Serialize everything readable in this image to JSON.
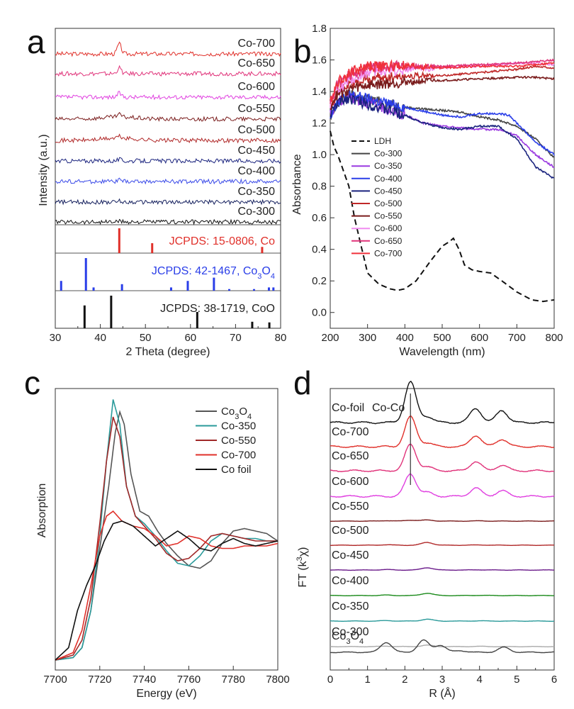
{
  "chart_data": [
    {
      "panel": "a",
      "type": "line",
      "xlabel": "2 Theta (degree)",
      "ylabel": "Intensity (a.u.)",
      "xlim": [
        30,
        80
      ],
      "xticks": [
        "30",
        "40",
        "50",
        "60",
        "70",
        "80"
      ],
      "series": [
        {
          "name": "Co-700",
          "color": "#e0302a",
          "peak": 44.2,
          "peak_height": 1.0
        },
        {
          "name": "Co-650",
          "color": "#e0337a",
          "peak": 44.2,
          "peak_height": 0.6
        },
        {
          "name": "Co-600",
          "color": "#e040e0",
          "peak": 44.2,
          "peak_height": 0.4
        },
        {
          "name": "Co-550",
          "color": "#7a1c1c",
          "peak": 44.2,
          "peak_height": 0.25
        },
        {
          "name": "Co-500",
          "color": "#b02828",
          "peak": 44.2,
          "peak_height": 0.2
        },
        {
          "name": "Co-450",
          "color": "#1a237e",
          "peak": 44.2,
          "peak_height": 0.15
        },
        {
          "name": "Co-400",
          "color": "#3a4ae8",
          "peak": 44.2,
          "peak_height": 0.15
        },
        {
          "name": "Co-350",
          "color": "#15205e",
          "peak": 44.2,
          "peak_height": 0.1
        },
        {
          "name": "Co-300",
          "color": "#111111",
          "peak": 44.2,
          "peak_height": 0.05
        }
      ],
      "references": [
        {
          "label": "JCPDS: 15-0806, Co",
          "color": "#e0302a",
          "peaks": [
            44.2,
            51.5,
            75.9
          ],
          "heights": [
            1.0,
            0.4,
            0.25
          ]
        },
        {
          "label": "JCPDS: 42-1467, Co",
          "label_sub": "3",
          "label_mid": "O",
          "label_sub2": "4",
          "color": "#2a3ee8",
          "peaks": [
            31.3,
            36.8,
            38.5,
            44.8,
            55.7,
            59.4,
            65.2,
            68.6,
            74.1,
            77.4,
            78.4
          ],
          "heights": [
            0.3,
            1.0,
            0.1,
            0.2,
            0.1,
            0.3,
            0.4,
            0.05,
            0.05,
            0.1,
            0.1
          ]
        },
        {
          "label": "JCPDS: 38-1719, CoO",
          "color": "#111111",
          "peaks": [
            36.5,
            42.4,
            61.5,
            73.7,
            77.5
          ],
          "heights": [
            0.7,
            1.0,
            0.5,
            0.2,
            0.18
          ]
        }
      ]
    },
    {
      "panel": "b",
      "type": "line",
      "xlabel": "Wavelength (nm)",
      "ylabel": "Absorbance",
      "xlim": [
        200,
        800
      ],
      "ylim": [
        -0.1,
        1.8
      ],
      "xticks": [
        "200",
        "300",
        "400",
        "500",
        "600",
        "700",
        "800"
      ],
      "yticks": [
        "0.0",
        "0.2",
        "0.4",
        "0.6",
        "0.8",
        "1.0",
        "1.2",
        "1.4",
        "1.6",
        "1.8"
      ],
      "series": [
        {
          "name": "LDH",
          "color": "#111111",
          "dash": true,
          "x": [
            200,
            210,
            220,
            235,
            250,
            265,
            280,
            300,
            330,
            360,
            380,
            400,
            430,
            470,
            500,
            520,
            530,
            545,
            560,
            580,
            600,
            630,
            660,
            700,
            740,
            770,
            800
          ],
          "y": [
            1.15,
            1.05,
            1.0,
            0.9,
            0.8,
            0.6,
            0.45,
            0.25,
            0.18,
            0.15,
            0.14,
            0.15,
            0.2,
            0.33,
            0.42,
            0.45,
            0.47,
            0.4,
            0.3,
            0.27,
            0.26,
            0.25,
            0.2,
            0.13,
            0.08,
            0.07,
            0.08
          ]
        },
        {
          "name": "Co-300",
          "color": "#444444",
          "x": [
            200,
            220,
            250,
            300,
            400,
            500,
            550,
            600,
            650,
            700,
            750,
            800
          ],
          "y": [
            1.22,
            1.32,
            1.38,
            1.35,
            1.3,
            1.28,
            1.27,
            1.24,
            1.22,
            1.18,
            1.1,
            0.98
          ]
        },
        {
          "name": "Co-350",
          "color": "#9a3ae0",
          "x": [
            200,
            220,
            250,
            300,
            400,
            450,
            500,
            550,
            600,
            650,
            700,
            750,
            800
          ],
          "y": [
            1.25,
            1.33,
            1.37,
            1.33,
            1.25,
            1.2,
            1.18,
            1.17,
            1.16,
            1.16,
            1.12,
            1.0,
            0.92
          ]
        },
        {
          "name": "Co-400",
          "color": "#2a3ee8",
          "x": [
            200,
            220,
            250,
            300,
            400,
            500,
            550,
            600,
            650,
            680,
            700,
            750,
            800
          ],
          "y": [
            1.25,
            1.34,
            1.38,
            1.35,
            1.3,
            1.25,
            1.24,
            1.26,
            1.26,
            1.25,
            1.2,
            1.08,
            1.0
          ]
        },
        {
          "name": "Co-450",
          "color": "#1a237e",
          "x": [
            200,
            220,
            250,
            300,
            400,
            450,
            500,
            550,
            600,
            650,
            700,
            720,
            750,
            800
          ],
          "y": [
            1.25,
            1.33,
            1.36,
            1.32,
            1.25,
            1.2,
            1.17,
            1.16,
            1.18,
            1.18,
            1.1,
            1.03,
            0.92,
            0.85
          ]
        },
        {
          "name": "Co-500",
          "color": "#c02828",
          "x": [
            200,
            220,
            260,
            300,
            400,
            500,
            600,
            700,
            750,
            800
          ],
          "y": [
            1.3,
            1.4,
            1.45,
            1.48,
            1.5,
            1.5,
            1.52,
            1.54,
            1.56,
            1.55
          ]
        },
        {
          "name": "Co-550",
          "color": "#7a1c1c",
          "x": [
            200,
            220,
            260,
            300,
            400,
            500,
            600,
            700,
            750,
            800
          ],
          "y": [
            1.32,
            1.38,
            1.42,
            1.44,
            1.46,
            1.47,
            1.48,
            1.49,
            1.49,
            1.48
          ]
        },
        {
          "name": "Co-600",
          "color": "#f08cf0",
          "x": [
            200,
            220,
            260,
            300,
            400,
            500,
            600,
            700,
            750,
            800
          ],
          "y": [
            1.32,
            1.42,
            1.48,
            1.52,
            1.54,
            1.55,
            1.56,
            1.58,
            1.58,
            1.57
          ]
        },
        {
          "name": "Co-650",
          "color": "#e0337a",
          "x": [
            200,
            220,
            260,
            300,
            400,
            500,
            600,
            700,
            750,
            800
          ],
          "y": [
            1.33,
            1.45,
            1.52,
            1.55,
            1.56,
            1.56,
            1.57,
            1.58,
            1.59,
            1.6
          ]
        },
        {
          "name": "Co-700",
          "color": "#f0303a",
          "x": [
            200,
            220,
            260,
            300,
            400,
            500,
            600,
            700,
            750,
            800
          ],
          "y": [
            1.34,
            1.46,
            1.53,
            1.56,
            1.56,
            1.55,
            1.56,
            1.56,
            1.57,
            1.58
          ]
        }
      ]
    },
    {
      "panel": "c",
      "type": "line",
      "xlabel": "Energy (eV)",
      "ylabel": "Absorption",
      "xlim": [
        7700,
        7800
      ],
      "xticks": [
        "7700",
        "7720",
        "7740",
        "7760",
        "7780",
        "7800"
      ],
      "series": [
        {
          "name": "Co",
          "name_sub": "3",
          "name_mid": "O",
          "name_sub2": "4",
          "color": "#555555",
          "x": [
            7700,
            7708,
            7712,
            7716,
            7720,
            7724,
            7727,
            7729,
            7731,
            7734,
            7738,
            7742,
            7746,
            7750,
            7755,
            7760,
            7765,
            7770,
            7775,
            7780,
            7785,
            7790,
            7795,
            7800
          ],
          "y": [
            0.0,
            0.01,
            0.05,
            0.2,
            0.45,
            0.7,
            0.92,
            1.0,
            0.95,
            0.75,
            0.6,
            0.58,
            0.52,
            0.47,
            0.42,
            0.38,
            0.37,
            0.4,
            0.47,
            0.52,
            0.53,
            0.52,
            0.51,
            0.48
          ]
        },
        {
          "name": "Co-350",
          "color": "#2a9a9a",
          "x": [
            7700,
            7708,
            7712,
            7716,
            7720,
            7723,
            7726,
            7729,
            7732,
            7736,
            7740,
            7745,
            7750,
            7755,
            7760,
            7765,
            7770,
            7775,
            7780,
            7785,
            7790,
            7795,
            7800
          ],
          "y": [
            0.0,
            0.01,
            0.05,
            0.2,
            0.5,
            0.8,
            1.05,
            0.95,
            0.7,
            0.58,
            0.55,
            0.5,
            0.44,
            0.39,
            0.38,
            0.42,
            0.48,
            0.51,
            0.5,
            0.49,
            0.49,
            0.48,
            0.48
          ]
        },
        {
          "name": "Co-550",
          "color": "#a02828",
          "x": [
            7700,
            7708,
            7712,
            7716,
            7720,
            7723,
            7726,
            7729,
            7732,
            7736,
            7740,
            7745,
            7750,
            7755,
            7760,
            7765,
            7770,
            7775,
            7780,
            7785,
            7790,
            7795,
            7800
          ],
          "y": [
            0.0,
            0.02,
            0.08,
            0.25,
            0.55,
            0.8,
            0.98,
            0.9,
            0.7,
            0.58,
            0.54,
            0.49,
            0.43,
            0.4,
            0.41,
            0.45,
            0.5,
            0.51,
            0.5,
            0.49,
            0.48,
            0.48,
            0.48
          ]
        },
        {
          "name": "Co-700",
          "color": "#e0302a",
          "x": [
            7700,
            7708,
            7712,
            7716,
            7720,
            7723,
            7726,
            7730,
            7735,
            7740,
            7745,
            7750,
            7755,
            7760,
            7765,
            7770,
            7775,
            7780,
            7785,
            7790,
            7795,
            7800
          ],
          "y": [
            0.0,
            0.03,
            0.12,
            0.3,
            0.5,
            0.58,
            0.6,
            0.56,
            0.54,
            0.53,
            0.5,
            0.46,
            0.47,
            0.5,
            0.49,
            0.46,
            0.45,
            0.45,
            0.46,
            0.46,
            0.46,
            0.47
          ]
        },
        {
          "name": "Co foil",
          "color": "#111111",
          "x": [
            7700,
            7706,
            7710,
            7714,
            7718,
            7722,
            7726,
            7730,
            7735,
            7740,
            7745,
            7750,
            7755,
            7760,
            7765,
            7770,
            7775,
            7780,
            7785,
            7790,
            7795,
            7800
          ],
          "y": [
            0.0,
            0.05,
            0.2,
            0.3,
            0.38,
            0.48,
            0.55,
            0.56,
            0.54,
            0.5,
            0.46,
            0.49,
            0.52,
            0.49,
            0.45,
            0.44,
            0.47,
            0.49,
            0.47,
            0.46,
            0.47,
            0.48
          ]
        }
      ]
    },
    {
      "panel": "d",
      "type": "line",
      "xlabel": "R (Å)",
      "ylabel": "FT (k",
      "ylabel_sup": "3",
      "ylabel_end": "χ)",
      "xlim": [
        0,
        6
      ],
      "xticks": [
        "0",
        "1",
        "2",
        "3",
        "4",
        "5",
        "6"
      ],
      "annotation": "Co-Co",
      "annotation_x": 2.15,
      "series": [
        {
          "name": "Co-foil",
          "color": "#111111",
          "peaks": [
            [
              2.15,
              1.0
            ],
            [
              2.6,
              0.15
            ],
            [
              3.9,
              0.35
            ],
            [
              4.6,
              0.3
            ]
          ]
        },
        {
          "name": "Co-700",
          "color": "#e0302a",
          "peaks": [
            [
              2.15,
              0.8
            ],
            [
              2.6,
              0.1
            ],
            [
              3.9,
              0.3
            ],
            [
              4.6,
              0.2
            ]
          ]
        },
        {
          "name": "Co-650",
          "color": "#e0337a",
          "peaks": [
            [
              2.15,
              0.7
            ],
            [
              2.6,
              0.1
            ],
            [
              3.9,
              0.25
            ],
            [
              4.6,
              0.15
            ]
          ]
        },
        {
          "name": "Co-600",
          "color": "#e040e0",
          "peaks": [
            [
              2.15,
              0.6
            ],
            [
              2.6,
              0.1
            ],
            [
              3.9,
              0.22
            ],
            [
              4.6,
              0.15
            ]
          ]
        },
        {
          "name": "Co-550",
          "color": "#7a1c1c",
          "peaks": [
            [
              1.5,
              0.05
            ],
            [
              2.15,
              0.1
            ],
            [
              2.6,
              0.12
            ],
            [
              4.0,
              0.03
            ]
          ]
        },
        {
          "name": "Co-500",
          "color": "#b02828",
          "peaks": [
            [
              1.5,
              0.05
            ],
            [
              2.6,
              0.3
            ],
            [
              4.0,
              0.03
            ]
          ]
        },
        {
          "name": "Co-450",
          "color": "#6a1a8a",
          "peaks": [
            [
              1.5,
              0.05
            ],
            [
              2.6,
              0.25
            ],
            [
              4.0,
              0.03
            ]
          ]
        },
        {
          "name": "Co-400",
          "color": "#1a8a1a",
          "peaks": [
            [
              1.5,
              0.05
            ],
            [
              2.6,
              0.25
            ],
            [
              4.0,
              0.03
            ]
          ]
        },
        {
          "name": "Co-350",
          "color": "#2a9a9a",
          "peaks": [
            [
              1.5,
              0.05
            ],
            [
              2.6,
              0.2
            ],
            [
              4.0,
              0.03
            ]
          ]
        },
        {
          "name": "Co-300",
          "color": "#aaaaaa",
          "peaks": [
            [
              1.5,
              0.05
            ],
            [
              2.6,
              0.15
            ],
            [
              4.0,
              0.03
            ]
          ]
        },
        {
          "name": "Co",
          "name_sub": "3",
          "name_mid": "O",
          "name_sub2": "4",
          "color": "#444444",
          "peaks": [
            [
              1.5,
              0.5
            ],
            [
              2.5,
              0.6
            ],
            [
              2.95,
              0.35
            ],
            [
              3.5,
              0.08
            ],
            [
              4.65,
              0.25
            ]
          ]
        }
      ]
    }
  ],
  "panel_labels": {
    "a": "a",
    "b": "b",
    "c": "c",
    "d": "d"
  }
}
